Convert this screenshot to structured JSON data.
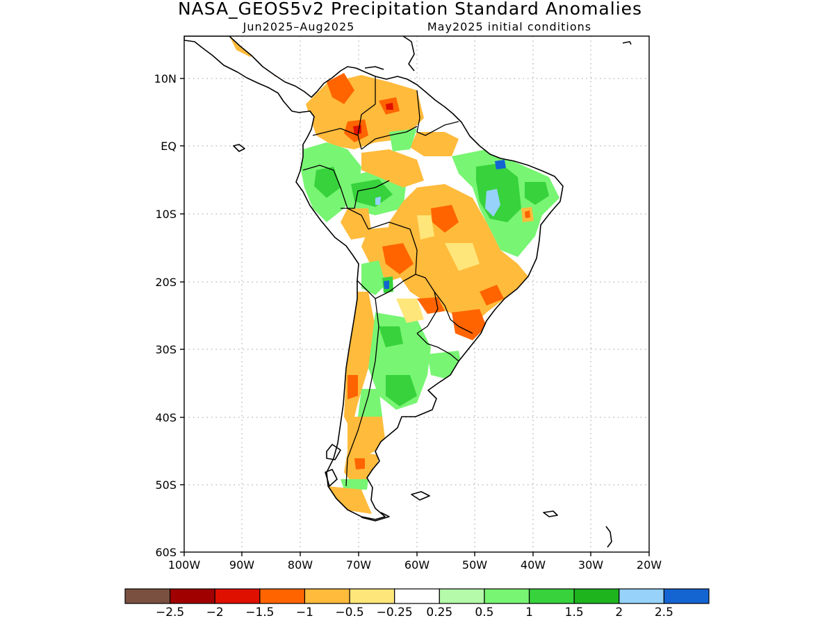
{
  "title": "NASA_GEOS5v2 Precipitation Standard Anomalies",
  "subtitle_left": "Jun2025–Aug2025",
  "subtitle_right": "May2025 initial conditions",
  "y_ticks": [
    "10N",
    "EQ",
    "10S",
    "20S",
    "30S",
    "40S",
    "50S",
    "60S"
  ],
  "x_ticks": [
    "100W",
    "90W",
    "80W",
    "70W",
    "60W",
    "50W",
    "40W",
    "30W",
    "20W"
  ],
  "colorbar": {
    "colors": [
      "#7a5040",
      "#a00000",
      "#e01000",
      "#ff6400",
      "#ffbb3c",
      "#ffe67a",
      "#ffffff",
      "#b4faaa",
      "#78f573",
      "#37d23c",
      "#1eb41e",
      "#96d2fa",
      "#1464d2"
    ],
    "labels": [
      "−2.5",
      "−2",
      "−1.5",
      "−1",
      "−0.5",
      "−0.25",
      "0.25",
      "0.5",
      "1",
      "1.5",
      "2",
      "2.5"
    ]
  }
}
